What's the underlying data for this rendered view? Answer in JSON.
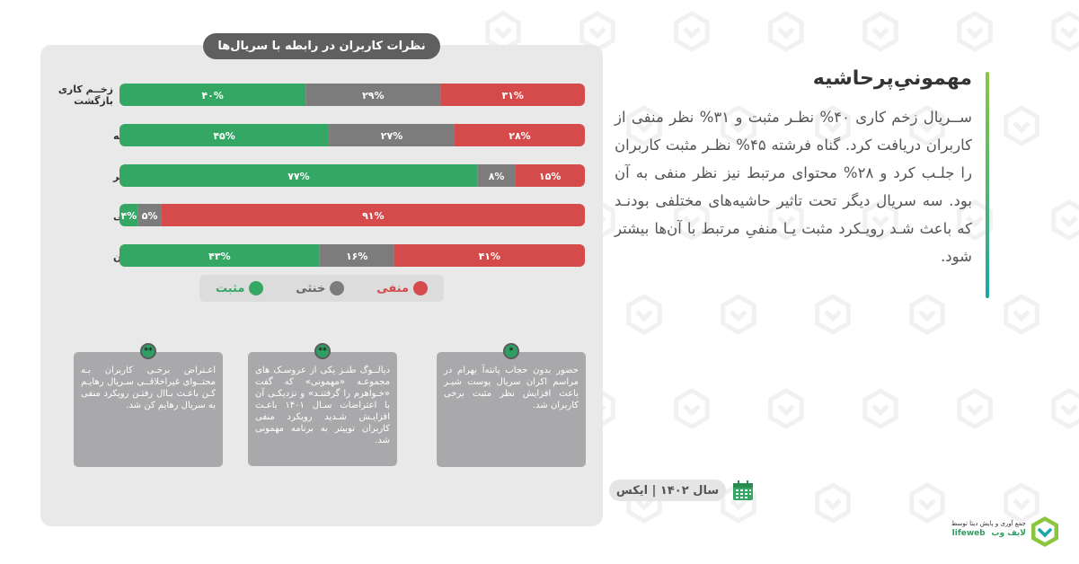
{
  "colors": {
    "positive": "#35a764",
    "neutral": "#7c7c7c",
    "negative": "#d54b4c",
    "accent_green": "#2e9e62"
  },
  "chart_data": {
    "type": "bar",
    "orientation": "horizontal-stacked-100",
    "title": "نظرات کاربران در رابطه با سریال‌ها",
    "categories": [
      "زخــم کاری بازگشت",
      "گناه فرشته",
      "پوست شیر*",
      "مهمونی**",
      "رهایم کن**"
    ],
    "series": [
      {
        "name": "مثبت",
        "color": "#35a764",
        "values": [
          40,
          45,
          77,
          4,
          43
        ],
        "labels": [
          "۴۰%",
          "۴۵%",
          "۷۷%",
          "۴%",
          "۴۳%"
        ]
      },
      {
        "name": "خنثی",
        "color": "#7c7c7c",
        "values": [
          29,
          27,
          8,
          5,
          16
        ],
        "labels": [
          "۲۹%",
          "۲۷%",
          "۸%",
          "۵%",
          "۱۶%"
        ]
      },
      {
        "name": "منفی",
        "color": "#d54b4c",
        "values": [
          31,
          28,
          15,
          91,
          41
        ],
        "labels": [
          "۳۱%",
          "۲۸%",
          "۱۵%",
          "۹۱%",
          "۴۱%"
        ]
      }
    ],
    "legend_position": "bottom"
  },
  "category_labels": {
    "row1_line1": "زخــم کاری",
    "row1_line2": "بازگشت",
    "row2": "گناه فرشته",
    "row3": "پوست شیر",
    "row3_mark": "*",
    "row4": "مهمونی",
    "row4_mark": "**",
    "row5": "رهایم کن",
    "row5_mark": "**"
  },
  "legend": {
    "positive": "مثبت",
    "neutral": "خنثی",
    "negative": "منفی"
  },
  "notes": [
    {
      "mark": "*",
      "text": "حضور بدون حجاب پانته‌آ بهرام در مراسم اکران سریال پوست شیـر باعث افزایش نظر مثبت برخی کاربران شد."
    },
    {
      "mark": "**",
      "text": "دیالــوگ طنـز یکی از عروسـک های مجموعـه «مهمونی» که گفت «خـواهرم را گرفتنـد» و نزدیکـی آن با اعتراضات سـال ۱۴۰۱ باعـث افزایـش شـدید رویکرد منفی کاربران توییتر به برنامه مهمونی شد."
    },
    {
      "mark": "**",
      "text": "اعـتراض برخـی کاربران بـه محتــوای غیراخلاقــی سـریال رهایـم کـن باعـث بـاال رفتـن رویکرد منفی به سریال رهایم کن شد."
    }
  ],
  "heading": "مهمونیِ‌پرحاشیه",
  "body": "ســریال زخم کاری ۴۰% نظـر مثبت و ۳۱% نظر منفی از کاربران دریافت کرد. گناه فرشته ۴۵% نظـر مثبت کاربران را جلـب کرد و ۲۸% محتوای مرتبط نیز نظر منفی به آن بود. سه سریال دیگر تحت تاثیر حاشیه‌های مختلفی بودنـد که باعث شـد رویـکرد مثبت یـا منفیِ مرتبط با آن‌ها بیشتر شود.",
  "date": "سال ۱۴۰۲  |  ایکس",
  "logo": {
    "line1": "جمع آوری و پایش دیتا توسط",
    "brand_fa": "لایف وب",
    "brand_en": "lifeweb"
  }
}
